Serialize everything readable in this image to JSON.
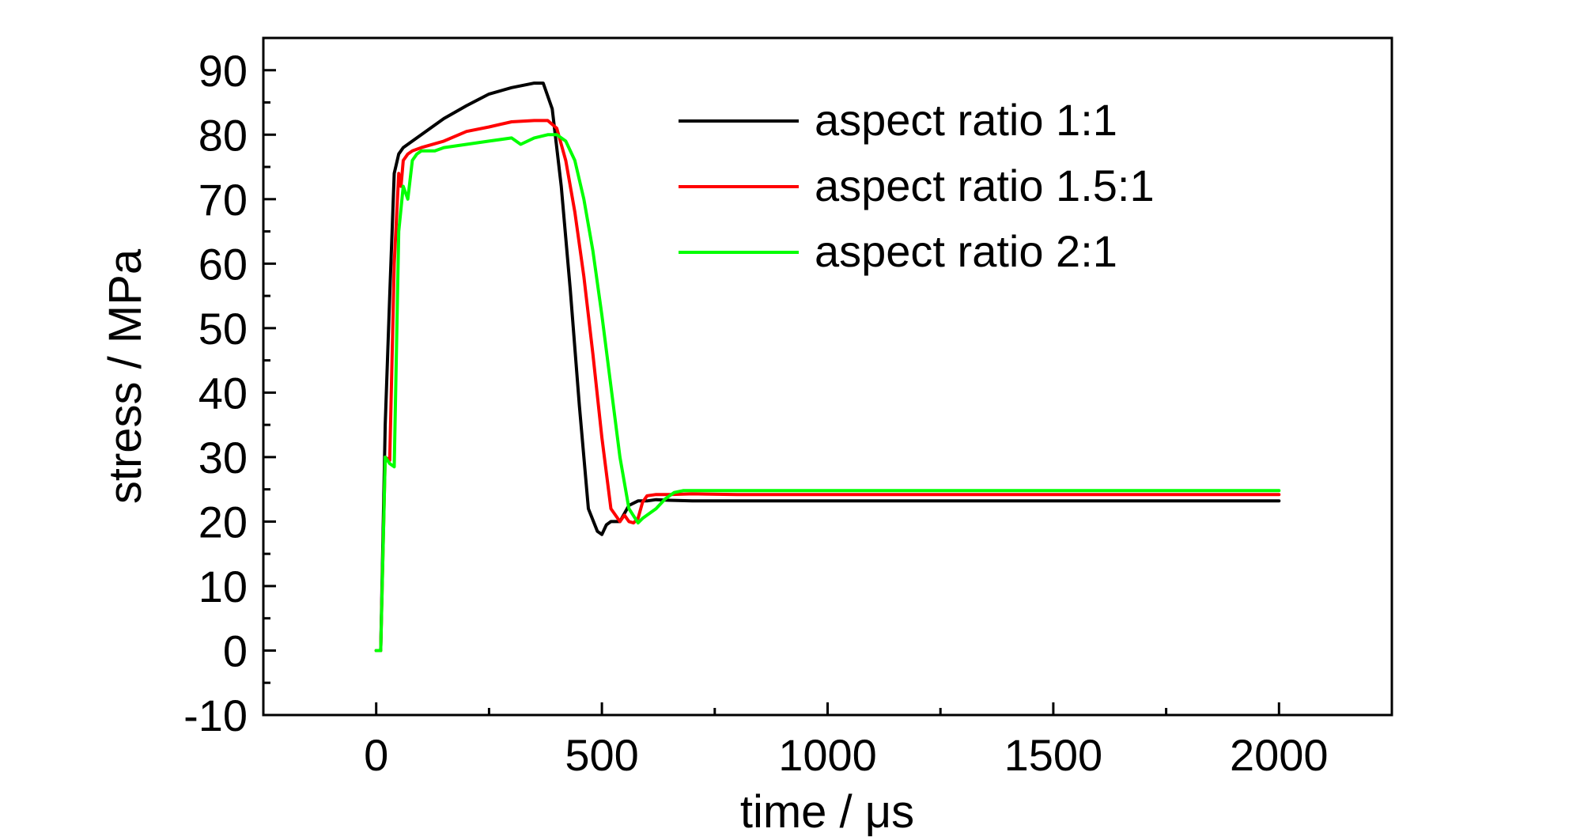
{
  "chart_data": {
    "type": "line",
    "xlabel": "time / μs",
    "ylabel": "stress / MPa",
    "xlim": [
      -250,
      2250
    ],
    "ylim": [
      -10,
      95
    ],
    "x_ticks": [
      0,
      500,
      1000,
      1500,
      2000
    ],
    "x_tick_labels": [
      "0",
      "500",
      "1000",
      "1500",
      "2000"
    ],
    "y_ticks": [
      -10,
      0,
      10,
      20,
      30,
      40,
      50,
      60,
      70,
      80,
      90
    ],
    "y_tick_labels": [
      "-10",
      "0",
      "10",
      "20",
      "30",
      "40",
      "50",
      "60",
      "70",
      "80",
      "90"
    ],
    "grid": false,
    "legend_position": "top-right",
    "series": [
      {
        "name": "aspect ratio 1:1",
        "color": "#000000",
        "x": [
          0,
          10,
          20,
          30,
          40,
          50,
          60,
          80,
          100,
          150,
          200,
          250,
          300,
          350,
          370,
          390,
          410,
          430,
          450,
          470,
          490,
          500,
          510,
          520,
          540,
          560,
          580,
          600,
          620,
          650,
          700,
          800,
          900,
          1000,
          1100,
          1200,
          1300,
          1400,
          1500,
          1600,
          1700,
          1800,
          1900,
          2000
        ],
        "y": [
          0,
          0,
          35,
          55,
          74,
          77,
          78,
          79,
          80,
          82.5,
          84.5,
          86.3,
          87.3,
          88,
          88,
          84,
          72,
          56,
          38,
          22,
          18.5,
          18,
          19.5,
          20,
          20,
          22.5,
          23.2,
          23.2,
          23.4,
          23.3,
          23.2,
          23.2,
          23.2,
          23.2,
          23.2,
          23.2,
          23.2,
          23.2,
          23.2,
          23.2,
          23.2,
          23.2,
          23.2,
          23.2
        ]
      },
      {
        "name": "aspect ratio 1.5:1",
        "color": "#ff0000",
        "x": [
          0,
          10,
          20,
          30,
          40,
          50,
          55,
          60,
          70,
          80,
          100,
          150,
          200,
          250,
          300,
          350,
          380,
          400,
          420,
          440,
          460,
          480,
          500,
          520,
          540,
          550,
          560,
          570,
          580,
          590,
          600,
          620,
          650,
          700,
          800,
          900,
          1000,
          1100,
          1200,
          1300,
          1400,
          1500,
          1600,
          1700,
          1800,
          1900,
          2000
        ],
        "y": [
          0,
          0,
          30,
          29.5,
          60,
          74,
          72,
          76,
          77,
          77.5,
          78,
          79,
          80.5,
          81.2,
          82,
          82.2,
          82.2,
          81,
          76,
          68,
          58,
          46,
          33,
          22,
          20,
          21,
          20,
          19.8,
          20.5,
          23,
          24,
          24.2,
          24.2,
          24.3,
          24.2,
          24.2,
          24.2,
          24.2,
          24.2,
          24.2,
          24.2,
          24.2,
          24.2,
          24.2,
          24.2,
          24.2,
          24.2
        ]
      },
      {
        "name": "aspect ratio 2:1",
        "color": "#00ff00",
        "x": [
          0,
          10,
          20,
          30,
          40,
          50,
          60,
          70,
          80,
          90,
          100,
          130,
          150,
          200,
          250,
          300,
          320,
          350,
          380,
          400,
          420,
          440,
          460,
          480,
          500,
          520,
          540,
          560,
          580,
          590,
          600,
          620,
          640,
          660,
          680,
          700,
          800,
          900,
          1000,
          1100,
          1200,
          1300,
          1400,
          1500,
          1600,
          1700,
          1800,
          1900,
          2000
        ],
        "y": [
          0,
          0,
          30,
          29,
          28.5,
          65,
          72,
          70,
          76,
          77,
          77.5,
          77.5,
          78,
          78.5,
          79,
          79.5,
          78.5,
          79.5,
          80,
          80,
          79,
          76,
          70,
          62,
          52,
          41,
          30,
          22,
          19.8,
          20.5,
          21,
          22,
          23.5,
          24.5,
          24.8,
          24.8,
          24.8,
          24.8,
          24.8,
          24.8,
          24.8,
          24.8,
          24.8,
          24.8,
          24.8,
          24.8,
          24.8,
          24.8,
          24.8
        ]
      }
    ]
  }
}
